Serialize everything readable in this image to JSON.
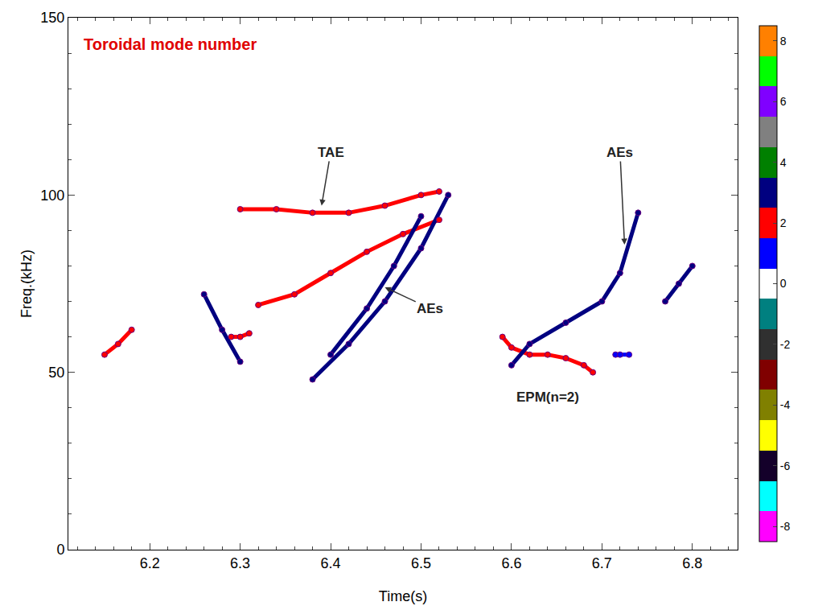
{
  "chart_data": {
    "type": "scatter",
    "title": "Toroidal mode number",
    "x_label": "Time(s)",
    "y_label": "Freq.(kHz)",
    "xlim": [
      6.11,
      6.85
    ],
    "xticks": [
      6.2,
      6.3,
      6.4,
      6.5,
      6.6,
      6.7,
      6.8
    ],
    "ylim": [
      0,
      150
    ],
    "yticks": [
      0,
      50,
      100,
      150
    ],
    "grid": false,
    "colorbar": {
      "range": [
        -8.5,
        8.5
      ],
      "ticks": [
        -8,
        -6,
        -4,
        -2,
        0,
        2,
        4,
        6,
        8
      ],
      "levels": [
        -8,
        -7,
        -6,
        -5,
        -4,
        -3,
        -2,
        -1,
        0,
        1,
        2,
        3,
        4,
        5,
        6,
        7,
        8
      ],
      "colors": [
        "#ff00ff",
        "#00ffff",
        "#14002a",
        "#ffff00",
        "#808000",
        "#800000",
        "#303030",
        "#008080",
        "#ffffff",
        "#0000ff",
        "#ff0000",
        "#000080",
        "#008000",
        "#808080",
        "#8000ff",
        "#00ff00",
        "#ff8000"
      ]
    },
    "series": [
      {
        "mode": 2,
        "x": [
          6.3,
          6.34,
          6.38,
          6.42,
          6.46,
          6.5,
          6.52
        ],
        "y": [
          96,
          96,
          95,
          95,
          97,
          100,
          101
        ]
      },
      {
        "mode": 2,
        "x": [
          6.32,
          6.36,
          6.4,
          6.44,
          6.48,
          6.52
        ],
        "y": [
          69,
          72,
          78,
          84,
          89,
          93
        ]
      },
      {
        "mode": 3,
        "x": [
          6.38,
          6.42,
          6.46,
          6.5,
          6.53
        ],
        "y": [
          48,
          58,
          70,
          85,
          100
        ]
      },
      {
        "mode": 3,
        "x": [
          6.4,
          6.44,
          6.47,
          6.5
        ],
        "y": [
          55,
          68,
          80,
          94
        ]
      },
      {
        "mode": 2,
        "x": [
          6.15,
          6.165,
          6.18
        ],
        "y": [
          55,
          58,
          62
        ]
      },
      {
        "mode": 3,
        "x": [
          6.26,
          6.28,
          6.3
        ],
        "y": [
          72,
          62,
          53
        ]
      },
      {
        "mode": 2,
        "x": [
          6.29,
          6.3,
          6.31
        ],
        "y": [
          60,
          60,
          61
        ]
      },
      {
        "mode": 2,
        "x": [
          6.59,
          6.6,
          6.62,
          6.64,
          6.66,
          6.68,
          6.69
        ],
        "y": [
          60,
          57,
          55,
          55,
          54,
          52,
          50
        ]
      },
      {
        "mode": 3,
        "x": [
          6.6,
          6.62,
          6.66,
          6.7,
          6.72,
          6.74
        ],
        "y": [
          52,
          58,
          64,
          70,
          78,
          95
        ]
      },
      {
        "mode": 1,
        "x": [
          6.715,
          6.72,
          6.73
        ],
        "y": [
          55,
          55,
          55
        ]
      },
      {
        "mode": 3,
        "x": [
          6.77,
          6.785,
          6.8
        ],
        "y": [
          70,
          75,
          80
        ]
      }
    ],
    "annotations": [
      {
        "text": "TAE",
        "x": 6.39,
        "y": 97,
        "text_x": 6.4,
        "text_y": 112
      },
      {
        "text": "AEs",
        "x": 6.46,
        "y": 74,
        "text_x": 6.51,
        "text_y": 68
      },
      {
        "text": "AEs",
        "x": 6.725,
        "y": 86,
        "text_x": 6.72,
        "text_y": 112
      },
      {
        "text": "EPM(n=2)",
        "x": 6.64,
        "y": 43,
        "text_x": 6.64,
        "text_y": 43
      }
    ]
  }
}
